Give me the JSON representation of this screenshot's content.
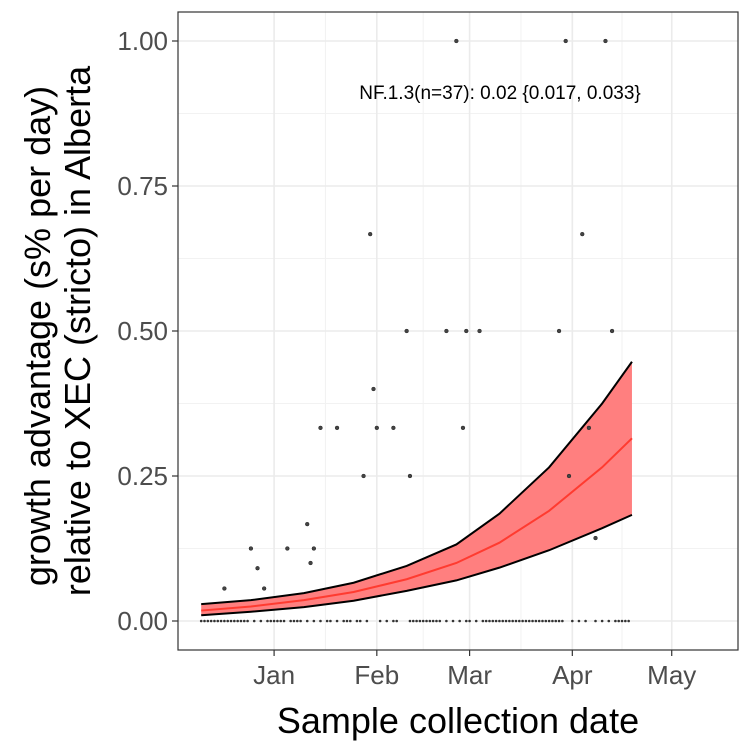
{
  "chart_data": {
    "type": "scatter",
    "xlabel": "Sample collection date",
    "ylabel": "growth advantage (s% per day)\nrelative to XEC (stricto) in Alberta",
    "annotation": "NF.1.3(n=37): 0.02 {0.017, 0.033}",
    "x_ticks": [
      {
        "label": "Jan",
        "date": "2025-01-01"
      },
      {
        "label": "Feb",
        "date": "2025-02-01"
      },
      {
        "label": "Mar",
        "date": "2025-03-01"
      },
      {
        "label": "Apr",
        "date": "2025-04-01"
      },
      {
        "label": "May",
        "date": "2025-05-01"
      }
    ],
    "y_ticks": [
      {
        "label": "0.00",
        "value": 0
      },
      {
        "label": "0.25",
        "value": 0.25
      },
      {
        "label": "0.50",
        "value": 0.5
      },
      {
        "label": "0.75",
        "value": 0.75
      },
      {
        "label": "1.00",
        "value": 1
      }
    ],
    "xlim": [
      "2024-12-03",
      "2025-05-21"
    ],
    "ylim": [
      -0.05,
      1.05
    ],
    "grid": true,
    "fit": {
      "color": "#ff3b30",
      "band_color": "#ff7f7f",
      "x": [
        "2024-12-10",
        "2024-12-25",
        "2025-01-10",
        "2025-01-25",
        "2025-02-10",
        "2025-02-25",
        "2025-03-10",
        "2025-03-25",
        "2025-04-10",
        "2025-04-19"
      ],
      "fit": [
        0.018,
        0.025,
        0.036,
        0.05,
        0.072,
        0.1,
        0.135,
        0.19,
        0.265,
        0.315
      ],
      "lower": [
        0.01,
        0.016,
        0.024,
        0.035,
        0.052,
        0.07,
        0.092,
        0.122,
        0.16,
        0.183
      ],
      "upper": [
        0.029,
        0.036,
        0.048,
        0.066,
        0.095,
        0.132,
        0.185,
        0.265,
        0.375,
        0.447
      ]
    },
    "points": [
      {
        "date": "2024-12-17",
        "value": 0.056
      },
      {
        "date": "2024-12-25",
        "value": 0.125
      },
      {
        "date": "2024-12-27",
        "value": 0.091
      },
      {
        "date": "2024-12-29",
        "value": 0.056
      },
      {
        "date": "2025-01-05",
        "value": 0.125
      },
      {
        "date": "2025-01-11",
        "value": 0.167
      },
      {
        "date": "2025-01-12",
        "value": 0.1
      },
      {
        "date": "2025-01-13",
        "value": 0.125
      },
      {
        "date": "2025-01-15",
        "value": 0.333
      },
      {
        "date": "2025-01-20",
        "value": 0.333
      },
      {
        "date": "2025-01-28",
        "value": 0.25
      },
      {
        "date": "2025-01-30",
        "value": 0.667
      },
      {
        "date": "2025-01-31",
        "value": 0.4
      },
      {
        "date": "2025-02-01",
        "value": 0.333
      },
      {
        "date": "2025-02-06",
        "value": 0.333
      },
      {
        "date": "2025-02-10",
        "value": 0.5
      },
      {
        "date": "2025-02-11",
        "value": 0.25
      },
      {
        "date": "2025-02-22",
        "value": 0.5
      },
      {
        "date": "2025-02-25",
        "value": 1.0
      },
      {
        "date": "2025-02-27",
        "value": 0.333
      },
      {
        "date": "2025-02-28",
        "value": 0.5
      },
      {
        "date": "2025-03-04",
        "value": 0.5
      },
      {
        "date": "2025-03-28",
        "value": 0.5
      },
      {
        "date": "2025-03-30",
        "value": 1.0
      },
      {
        "date": "2025-03-31",
        "value": 0.25
      },
      {
        "date": "2025-04-04",
        "value": 0.667
      },
      {
        "date": "2025-04-06",
        "value": 0.333
      },
      {
        "date": "2025-04-08",
        "value": 0.143
      },
      {
        "date": "2025-04-11",
        "value": 1.0
      },
      {
        "date": "2025-04-13",
        "value": 0.5
      }
    ],
    "zero_point_dates": [
      "2024-12-10",
      "2024-12-11",
      "2024-12-12",
      "2024-12-13",
      "2024-12-14",
      "2024-12-15",
      "2024-12-16",
      "2024-12-17",
      "2024-12-18",
      "2024-12-19",
      "2024-12-20",
      "2024-12-21",
      "2024-12-22",
      "2024-12-23",
      "2024-12-24",
      "2024-12-26",
      "2024-12-28",
      "2024-12-30",
      "2024-12-31",
      "2025-01-01",
      "2025-01-02",
      "2025-01-03",
      "2025-01-04",
      "2025-01-06",
      "2025-01-07",
      "2025-01-08",
      "2025-01-09",
      "2025-01-11",
      "2025-01-13",
      "2025-01-15",
      "2025-01-17",
      "2025-01-18",
      "2025-01-20",
      "2025-01-22",
      "2025-01-23",
      "2025-01-24",
      "2025-01-26",
      "2025-01-27",
      "2025-01-29",
      "2025-02-02",
      "2025-02-04",
      "2025-02-06",
      "2025-02-07",
      "2025-02-11",
      "2025-02-12",
      "2025-02-13",
      "2025-02-14",
      "2025-02-15",
      "2025-02-16",
      "2025-02-17",
      "2025-02-18",
      "2025-02-19",
      "2025-02-20",
      "2025-02-22",
      "2025-02-24",
      "2025-02-26",
      "2025-02-28",
      "2025-03-01",
      "2025-03-03",
      "2025-03-05",
      "2025-03-06",
      "2025-03-07",
      "2025-03-08",
      "2025-03-09",
      "2025-03-10",
      "2025-03-11",
      "2025-03-12",
      "2025-03-13",
      "2025-03-14",
      "2025-03-15",
      "2025-03-16",
      "2025-03-17",
      "2025-03-18",
      "2025-03-19",
      "2025-03-20",
      "2025-03-21",
      "2025-03-22",
      "2025-03-23",
      "2025-03-24",
      "2025-03-25",
      "2025-03-26",
      "2025-03-27",
      "2025-03-28",
      "2025-03-29",
      "2025-04-01",
      "2025-04-03",
      "2025-04-05",
      "2025-04-08",
      "2025-04-10",
      "2025-04-12",
      "2025-04-14",
      "2025-04-15",
      "2025-04-16",
      "2025-04-17",
      "2025-04-18"
    ]
  }
}
